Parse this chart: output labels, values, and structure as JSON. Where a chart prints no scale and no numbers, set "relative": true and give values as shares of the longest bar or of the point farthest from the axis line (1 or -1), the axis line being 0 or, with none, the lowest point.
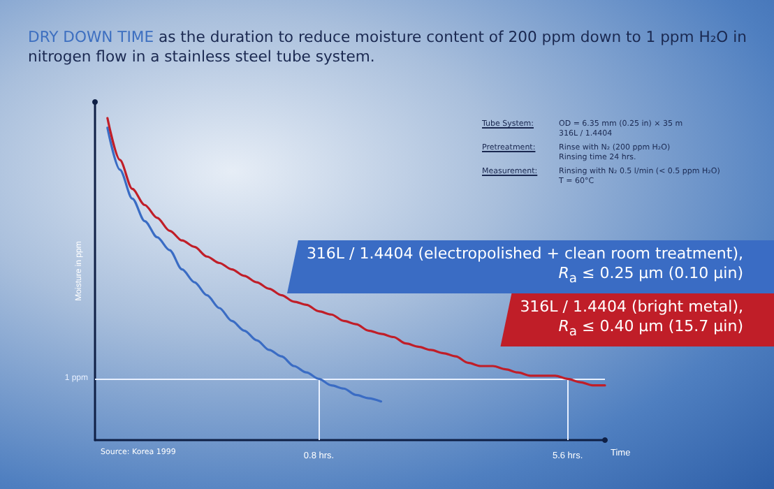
{
  "chart_data": {
    "type": "line",
    "relative": true,
    "title": "DRY DOWN TIME as the duration to reduce moisture content of 200 ppm down to 1 ppm H₂O in nitrogen flow in a stainless steel tube system.",
    "xlabel": "Time",
    "ylabel": "Moisture in ppm",
    "categories": [
      null,
      null,
      null,
      null,
      null,
      null,
      null,
      null,
      null,
      null,
      null,
      null,
      null,
      null,
      null,
      null,
      null,
      null,
      "0.8 hrs.",
      null,
      null,
      null,
      null,
      null,
      null,
      null,
      null,
      null,
      null,
      null,
      null,
      null,
      null,
      null,
      null,
      null,
      null,
      null,
      "5.6 hrs.",
      null,
      null,
      null
    ],
    "series": [
      {
        "name": "316L / 1.4404 (electropolished + clean room treatment),\nR$_{a}$ ≤ 0.25 µm (0.10 µin)",
        "color": "#3a6cc4",
        "values": [
          null,
          0.97,
          0.84,
          0.75,
          0.68,
          0.63,
          0.59,
          0.53,
          0.49,
          0.45,
          0.41,
          0.37,
          0.34,
          0.31,
          0.28,
          0.26,
          0.23,
          0.21,
          0.19,
          0.17,
          0.16,
          0.14,
          0.13,
          0.12,
          null,
          null,
          null,
          null,
          null,
          null,
          null,
          null,
          null,
          null,
          null,
          null,
          null,
          null,
          null,
          null,
          null,
          null
        ]
      },
      {
        "name": "316L / 1.4404 (bright metal),\nR$_{a}$ ≤ 0.40 µm (15.7 µin)",
        "color": "#c01e28",
        "values": [
          null,
          1.0,
          0.87,
          0.78,
          0.73,
          0.69,
          0.65,
          0.62,
          0.6,
          0.57,
          0.55,
          0.53,
          0.51,
          0.49,
          0.47,
          0.45,
          0.43,
          0.42,
          0.4,
          0.39,
          0.37,
          0.36,
          0.34,
          0.33,
          0.32,
          0.3,
          0.29,
          0.28,
          0.27,
          0.26,
          0.24,
          0.23,
          0.23,
          0.22,
          0.21,
          0.2,
          0.2,
          0.2,
          0.19,
          0.18,
          0.17,
          0.17
        ]
      }
    ],
    "ref_lines": [
      {
        "axis": "y",
        "value": 0.19,
        "label": "1 ppm",
        "color": "#e8f0ff"
      },
      {
        "axis": "x",
        "value": "0.8 hrs.",
        "color": "#e8f0ff"
      },
      {
        "axis": "x",
        "value": "5.6 hrs.",
        "color": "#e8f0ff"
      }
    ],
    "annotations": [
      "Tube System:",
      "OD = 6.35 mm (0.25 in) × 35 m\n316L / 1.4404",
      "Pretreatment:",
      "Rinse with N₂ (200 ppm H₂O)\nRinsing time 24 hrs.",
      "Measurement:",
      "Rinsing with N₂ 0.5 l/min (< 0.5 ppm H₂O)\nT = 60°C",
      "Source: Korea 1999"
    ],
    "legend": "right",
    "grid": false
  }
}
